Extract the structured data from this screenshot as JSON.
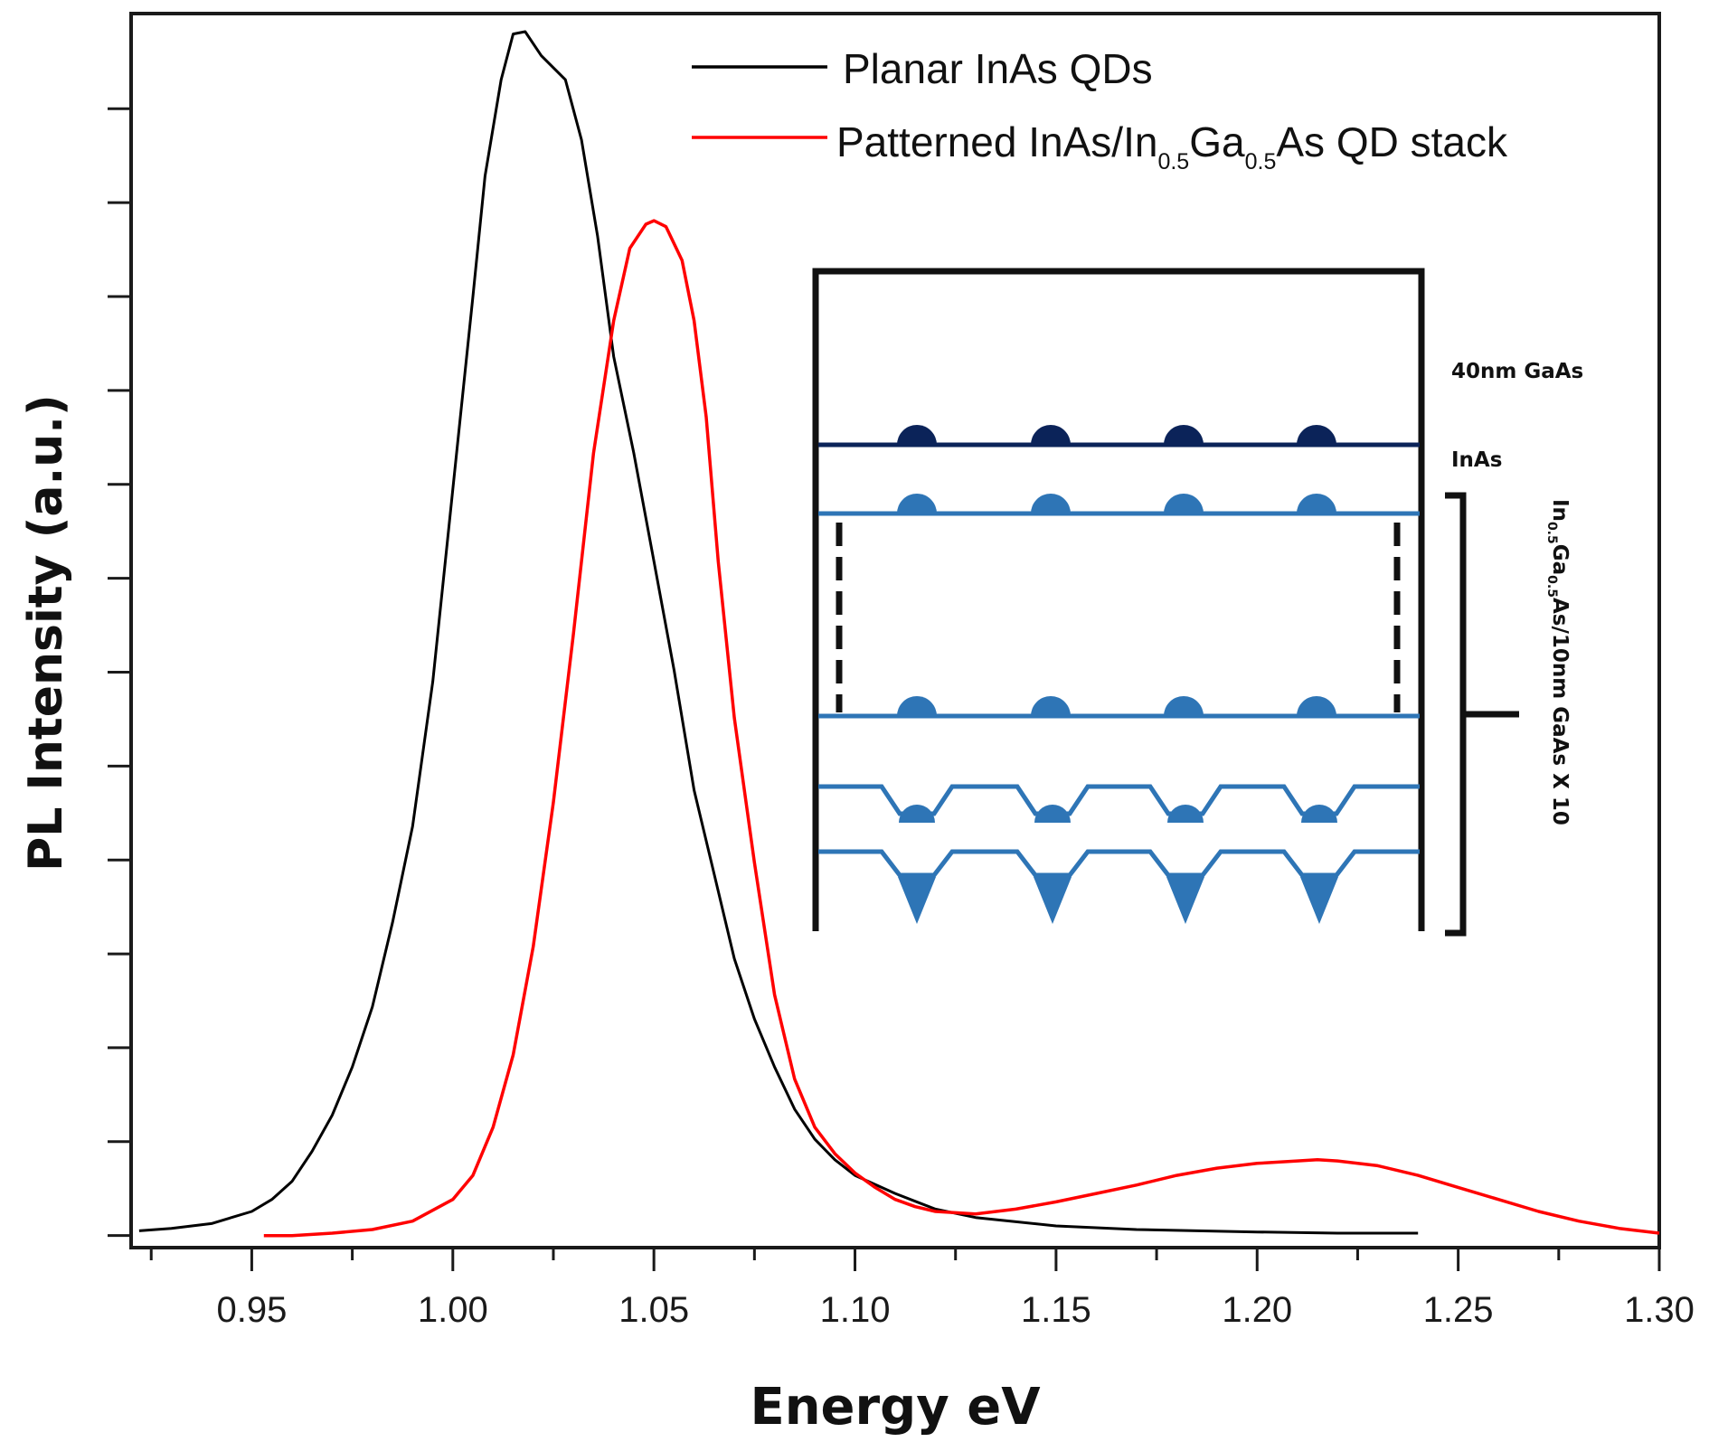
{
  "chart_data": {
    "type": "line",
    "title": "",
    "xlabel": "Energy eV",
    "ylabel": "PL Intensity (a.u.)",
    "xlim": [
      0.92,
      1.3
    ],
    "ylim": [
      -0.01,
      1.015
    ],
    "y_tick_values": [
      0,
      0.078,
      0.156,
      0.234,
      0.312,
      0.39,
      0.468,
      0.546,
      0.624,
      0.702,
      0.78,
      0.858,
      0.936
    ],
    "y_tick_labels_shown": false,
    "x_ticks": [
      {
        "value": 0.95,
        "label": "0.95"
      },
      {
        "value": 1.0,
        "label": "1.00"
      },
      {
        "value": 1.05,
        "label": "1.05"
      },
      {
        "value": 1.1,
        "label": "1.10"
      },
      {
        "value": 1.15,
        "label": "1.15"
      },
      {
        "value": 1.2,
        "label": "1.20"
      },
      {
        "value": 1.25,
        "label": "1.25"
      },
      {
        "value": 1.3,
        "label": "1.30"
      }
    ],
    "x_minor_ticks": [
      0.925,
      0.975,
      1.025,
      1.075,
      1.125,
      1.175,
      1.225,
      1.275
    ],
    "legend_position": "top-right",
    "series": [
      {
        "name": "Planar InAs QDs",
        "color": "#000000",
        "points": [
          [
            0.922,
            0.004
          ],
          [
            0.93,
            0.006
          ],
          [
            0.94,
            0.01
          ],
          [
            0.95,
            0.02
          ],
          [
            0.955,
            0.03
          ],
          [
            0.96,
            0.045
          ],
          [
            0.965,
            0.07
          ],
          [
            0.97,
            0.1
          ],
          [
            0.975,
            0.14
          ],
          [
            0.98,
            0.19
          ],
          [
            0.985,
            0.26
          ],
          [
            0.99,
            0.34
          ],
          [
            0.995,
            0.46
          ],
          [
            1.0,
            0.62
          ],
          [
            1.005,
            0.78
          ],
          [
            1.008,
            0.88
          ],
          [
            1.012,
            0.96
          ],
          [
            1.015,
            0.998
          ],
          [
            1.018,
            1.0
          ],
          [
            1.022,
            0.98
          ],
          [
            1.025,
            0.97
          ],
          [
            1.028,
            0.96
          ],
          [
            1.032,
            0.91
          ],
          [
            1.036,
            0.83
          ],
          [
            1.04,
            0.73
          ],
          [
            1.045,
            0.65
          ],
          [
            1.05,
            0.56
          ],
          [
            1.055,
            0.47
          ],
          [
            1.06,
            0.37
          ],
          [
            1.065,
            0.3
          ],
          [
            1.07,
            0.23
          ],
          [
            1.075,
            0.18
          ],
          [
            1.08,
            0.14
          ],
          [
            1.085,
            0.105
          ],
          [
            1.09,
            0.08
          ],
          [
            1.095,
            0.063
          ],
          [
            1.1,
            0.05
          ],
          [
            1.11,
            0.035
          ],
          [
            1.12,
            0.022
          ],
          [
            1.13,
            0.015
          ],
          [
            1.15,
            0.008
          ],
          [
            1.17,
            0.005
          ],
          [
            1.2,
            0.003
          ],
          [
            1.22,
            0.002
          ],
          [
            1.24,
            0.002
          ]
        ]
      },
      {
        "name": "Patterned InAs/In0.5Ga0.5As QD stack",
        "color": "#ff0000",
        "points": [
          [
            0.953,
            0.0
          ],
          [
            0.96,
            0.0
          ],
          [
            0.97,
            0.002
          ],
          [
            0.98,
            0.005
          ],
          [
            0.99,
            0.012
          ],
          [
            1.0,
            0.03
          ],
          [
            1.005,
            0.05
          ],
          [
            1.01,
            0.09
          ],
          [
            1.015,
            0.15
          ],
          [
            1.02,
            0.24
          ],
          [
            1.025,
            0.36
          ],
          [
            1.03,
            0.5
          ],
          [
            1.035,
            0.65
          ],
          [
            1.04,
            0.76
          ],
          [
            1.044,
            0.82
          ],
          [
            1.048,
            0.84
          ],
          [
            1.05,
            0.843
          ],
          [
            1.053,
            0.838
          ],
          [
            1.057,
            0.81
          ],
          [
            1.06,
            0.76
          ],
          [
            1.063,
            0.68
          ],
          [
            1.066,
            0.56
          ],
          [
            1.07,
            0.43
          ],
          [
            1.075,
            0.31
          ],
          [
            1.08,
            0.2
          ],
          [
            1.085,
            0.13
          ],
          [
            1.09,
            0.09
          ],
          [
            1.095,
            0.068
          ],
          [
            1.1,
            0.052
          ],
          [
            1.105,
            0.04
          ],
          [
            1.11,
            0.03
          ],
          [
            1.115,
            0.024
          ],
          [
            1.12,
            0.02
          ],
          [
            1.13,
            0.018
          ],
          [
            1.14,
            0.022
          ],
          [
            1.15,
            0.028
          ],
          [
            1.16,
            0.035
          ],
          [
            1.17,
            0.042
          ],
          [
            1.18,
            0.05
          ],
          [
            1.19,
            0.056
          ],
          [
            1.2,
            0.06
          ],
          [
            1.21,
            0.062
          ],
          [
            1.215,
            0.063
          ],
          [
            1.22,
            0.062
          ],
          [
            1.23,
            0.058
          ],
          [
            1.24,
            0.05
          ],
          [
            1.25,
            0.04
          ],
          [
            1.26,
            0.03
          ],
          [
            1.27,
            0.02
          ],
          [
            1.28,
            0.012
          ],
          [
            1.29,
            0.006
          ],
          [
            1.3,
            0.002
          ]
        ]
      }
    ]
  },
  "legend": {
    "planar_label": "Planar InAs QDs",
    "patterned_label_parts": [
      "Patterned InAs/In",
      "0.5",
      "Ga",
      "0.5",
      "As QD stack"
    ]
  },
  "inset": {
    "label_gaas": "40nm GaAs",
    "label_inas": "InAs",
    "bracket_label_parts": [
      "In",
      "0.5",
      "Ga",
      "0.5",
      "As/10nm GaAs X 10"
    ],
    "colors": {
      "top_layer": "#0b2359",
      "layers": "#2e75b6",
      "frame": "#111111"
    }
  }
}
